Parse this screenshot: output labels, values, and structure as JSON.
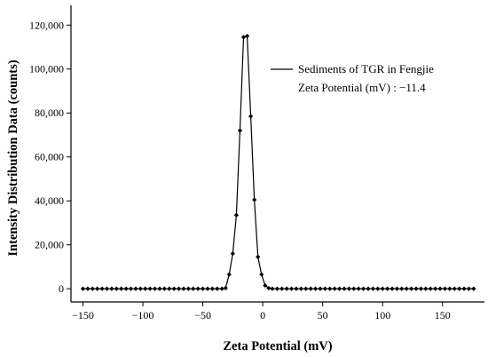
{
  "chart_data": {
    "type": "line",
    "xlabel": "Zeta Potential  (mV)",
    "ylabel": "Intensity Distribution Data (counts)",
    "xlim": [
      -160,
      185
    ],
    "ylim": [
      -6000,
      129000
    ],
    "x_ticks": [
      -150,
      -100,
      -50,
      0,
      50,
      100,
      150
    ],
    "x_tick_labels": [
      "−150",
      "−100",
      "−50",
      "0",
      "50",
      "100",
      "150"
    ],
    "y_ticks": [
      0,
      20000,
      40000,
      60000,
      80000,
      100000,
      120000
    ],
    "y_tick_labels": [
      "0",
      "20,000",
      "40,000",
      "60,000",
      "80,000",
      "100,000",
      "120,000"
    ],
    "grid": false,
    "legend_position": "top-right",
    "legend": {
      "line_label": "Sediments of TGR in Fengjie",
      "annotation": "Zeta Potential (mV) : −11.4"
    },
    "series": [
      {
        "name": "Sediments of TGR in Fengjie",
        "color": "#000000",
        "marker": "diamond",
        "points": [
          [
            -150,
            0
          ],
          [
            -146,
            0
          ],
          [
            -142,
            0
          ],
          [
            -138,
            0
          ],
          [
            -134,
            0
          ],
          [
            -130,
            0
          ],
          [
            -126,
            0
          ],
          [
            -122,
            0
          ],
          [
            -118,
            0
          ],
          [
            -114,
            0
          ],
          [
            -110,
            0
          ],
          [
            -106,
            0
          ],
          [
            -102,
            0
          ],
          [
            -98,
            0
          ],
          [
            -94,
            0
          ],
          [
            -90,
            0
          ],
          [
            -86,
            0
          ],
          [
            -82,
            0
          ],
          [
            -78,
            0
          ],
          [
            -74,
            0
          ],
          [
            -70,
            0
          ],
          [
            -66,
            0
          ],
          [
            -62,
            0
          ],
          [
            -58,
            0
          ],
          [
            -54,
            0
          ],
          [
            -50,
            0
          ],
          [
            -46,
            0
          ],
          [
            -42,
            0
          ],
          [
            -38,
            0
          ],
          [
            -34,
            0
          ],
          [
            -31,
            300
          ],
          [
            -28,
            6500
          ],
          [
            -25,
            16000
          ],
          [
            -22,
            33500
          ],
          [
            -19,
            72000
          ],
          [
            -16,
            114500
          ],
          [
            -13,
            115000
          ],
          [
            -10,
            78500
          ],
          [
            -7,
            40500
          ],
          [
            -4,
            14500
          ],
          [
            -1,
            6500
          ],
          [
            2,
            1500
          ],
          [
            5,
            300
          ],
          [
            8,
            0
          ],
          [
            12,
            0
          ],
          [
            16,
            0
          ],
          [
            20,
            0
          ],
          [
            24,
            0
          ],
          [
            28,
            0
          ],
          [
            32,
            0
          ],
          [
            36,
            0
          ],
          [
            40,
            0
          ],
          [
            44,
            0
          ],
          [
            48,
            0
          ],
          [
            52,
            0
          ],
          [
            56,
            0
          ],
          [
            60,
            0
          ],
          [
            64,
            0
          ],
          [
            68,
            0
          ],
          [
            72,
            0
          ],
          [
            76,
            0
          ],
          [
            80,
            0
          ],
          [
            84,
            0
          ],
          [
            88,
            0
          ],
          [
            92,
            0
          ],
          [
            96,
            0
          ],
          [
            100,
            0
          ],
          [
            104,
            0
          ],
          [
            108,
            0
          ],
          [
            112,
            0
          ],
          [
            116,
            0
          ],
          [
            120,
            0
          ],
          [
            124,
            0
          ],
          [
            128,
            0
          ],
          [
            132,
            0
          ],
          [
            136,
            0
          ],
          [
            140,
            0
          ],
          [
            144,
            0
          ],
          [
            148,
            0
          ],
          [
            152,
            0
          ],
          [
            156,
            0
          ],
          [
            160,
            0
          ],
          [
            164,
            0
          ],
          [
            168,
            0
          ],
          [
            172,
            0
          ],
          [
            176,
            0
          ]
        ]
      }
    ]
  }
}
